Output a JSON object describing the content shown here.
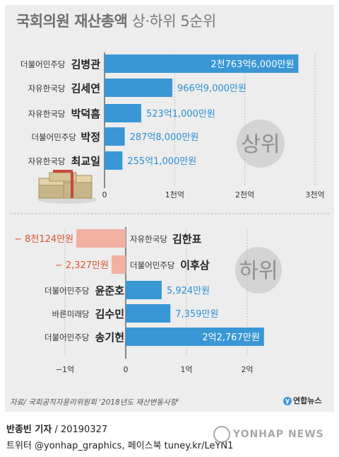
{
  "title": {
    "bold": "국회의원 재산총액",
    "sub": "상·하위 5순위"
  },
  "chart_data": [
    {
      "type": "bar",
      "badge": "상위",
      "categories": [
        "김병관",
        "김세연",
        "박덕흠",
        "박정",
        "최교일"
      ],
      "parties": [
        "더불어민주당",
        "자유한국당",
        "자유한국당",
        "더불어민주당",
        "자유한국당"
      ],
      "values": [
        2763.6,
        966.9,
        523.1,
        287.8,
        255.1
      ],
      "value_labels": [
        "2천763억6,000만원",
        "966억9,000만원",
        "523억1,000만원",
        "287억8,000만원",
        "255억1,000만원"
      ],
      "unit": "억원",
      "xlim": [
        0,
        3000
      ],
      "xticks": [
        {
          "value": 0,
          "label": "0"
        },
        {
          "value": 1000,
          "label": "1천억"
        },
        {
          "value": 2000,
          "label": "2천억"
        },
        {
          "value": 3000,
          "label": "3천억"
        }
      ],
      "color": "#3a97d6"
    },
    {
      "type": "bar",
      "badge": "하위",
      "categories": [
        "김한표",
        "이후삼",
        "윤준호",
        "김수민",
        "송기헌"
      ],
      "parties": [
        "자유한국당",
        "더불어민주당",
        "더불어민주당",
        "바른미래당",
        "더불어민주당"
      ],
      "values": [
        -0.8124,
        -0.2327,
        0.5924,
        0.7359,
        2.2767
      ],
      "value_labels": [
        "− 8천124만원",
        "− 2,327만원",
        "5,924만원",
        "7,359만원",
        "2억2,767만원"
      ],
      "unit": "억원",
      "xlim": [
        -1,
        2
      ],
      "xticks": [
        {
          "value": -1,
          "label": "−1억"
        },
        {
          "value": 0,
          "label": "0"
        },
        {
          "value": 1,
          "label": "1억"
        },
        {
          "value": 2,
          "label": "2억"
        }
      ],
      "color": "#3a97d6",
      "negative_color": "#f2b0a0"
    }
  ],
  "source": "자료/ 국회공직자윤리위원회 '2018년도 재산변동사항'",
  "logo": "연합뉴스",
  "credit": {
    "name": "반종빈 기자",
    "date": " / 20190327"
  },
  "twitter": "트위터 @yonhap_graphics, 페이스북 tuney.kr/LeYN1",
  "watermark": "YONHAP NEWS"
}
